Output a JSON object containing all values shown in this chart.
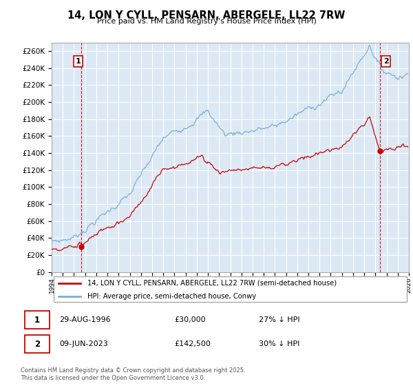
{
  "title": "14, LON Y CYLL, PENSARN, ABERGELE, LL22 7RW",
  "subtitle": "Price paid vs. HM Land Registry's House Price Index (HPI)",
  "xlim": [
    1994.0,
    2026.0
  ],
  "ylim": [
    0,
    270000
  ],
  "yticks": [
    0,
    20000,
    40000,
    60000,
    80000,
    100000,
    120000,
    140000,
    160000,
    180000,
    200000,
    220000,
    240000,
    260000
  ],
  "sale1_date": 1996.66,
  "sale1_price": 30000,
  "sale2_date": 2023.44,
  "sale2_price": 142500,
  "legend_line1": "14, LON Y CYLL, PENSARN, ABERGELE, LL22 7RW (semi-detached house)",
  "legend_line2": "HPI: Average price, semi-detached house, Conwy",
  "footer": "Contains HM Land Registry data © Crown copyright and database right 2025.\nThis data is licensed under the Open Government Licence v3.0.",
  "hpi_color": "#7bafd4",
  "price_color": "#cc0000",
  "bg_color": "#dce9f5",
  "grid_color": "#ffffff"
}
